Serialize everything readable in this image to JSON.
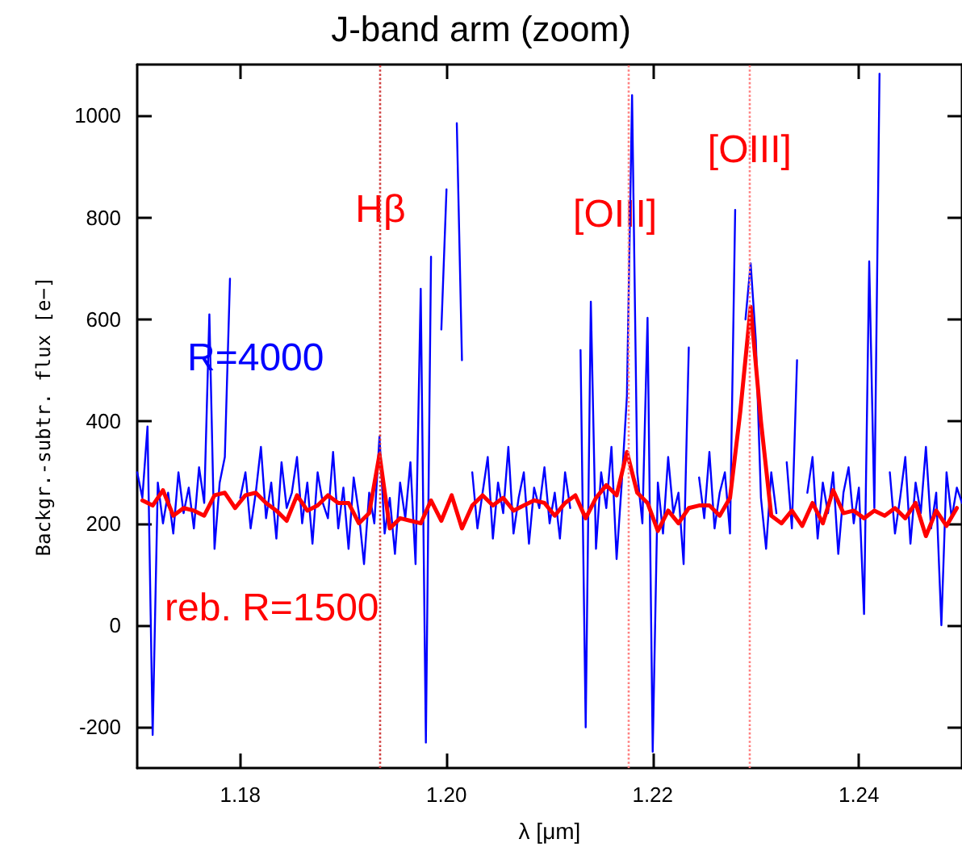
{
  "chart_data": {
    "type": "line",
    "title": "J-band arm (zoom)",
    "xlabel": "λ [μm]",
    "ylabel": "Backgr.-subtr. flux [e−]",
    "xlim": [
      1.17,
      1.25
    ],
    "xticks": [
      {
        "value": 1.18,
        "label": "1.18"
      },
      {
        "value": 1.2,
        "label": "1.20"
      },
      {
        "value": 1.22,
        "label": "1.22"
      },
      {
        "value": 1.24,
        "label": "1.24"
      }
    ],
    "ylim": [
      -280,
      1100
    ],
    "yticks": [
      -200,
      0,
      200,
      400,
      600,
      800,
      1000
    ],
    "legend": false,
    "marker": "none",
    "line_style": "solid",
    "series": [
      {
        "name": "R=4000",
        "color": "#0000ff",
        "x": [
          1.17,
          1.1705,
          1.171,
          1.1715,
          1.172,
          1.1725,
          1.173,
          1.1735,
          1.174,
          1.1745,
          1.175,
          1.1755,
          1.176,
          1.1765,
          1.177,
          1.1775,
          1.178,
          1.1785,
          1.179,
          1.1795,
          1.18,
          1.1805,
          1.181,
          1.1815,
          1.182,
          1.1825,
          1.183,
          1.1835,
          1.184,
          1.1845,
          1.185,
          1.1855,
          1.186,
          1.1865,
          1.187,
          1.1875,
          1.188,
          1.1885,
          1.189,
          1.1895,
          1.19,
          1.1905,
          1.191,
          1.1915,
          1.192,
          1.1925,
          1.193,
          1.1935,
          1.194,
          1.1945,
          1.195,
          1.1955,
          1.196,
          1.1965,
          1.197,
          1.1975,
          1.198,
          1.1985,
          1.199,
          1.1995,
          1.2,
          1.2005,
          1.201,
          1.2015,
          1.202,
          1.2025,
          1.203,
          1.2035,
          1.204,
          1.2045,
          1.205,
          1.2055,
          1.206,
          1.2065,
          1.207,
          1.2075,
          1.208,
          1.2085,
          1.209,
          1.2095,
          1.21,
          1.2105,
          1.211,
          1.2115,
          1.212,
          1.2125,
          1.213,
          1.2135,
          1.214,
          1.2145,
          1.215,
          1.2155,
          1.216,
          1.2165,
          1.217,
          1.2175,
          1.218,
          1.2185,
          1.219,
          1.2195,
          1.22,
          1.2205,
          1.221,
          1.2215,
          1.222,
          1.2225,
          1.223,
          1.2235,
          1.224,
          1.2245,
          1.225,
          1.2255,
          1.226,
          1.2265,
          1.227,
          1.2275,
          1.228,
          1.2285,
          1.229,
          1.2295,
          1.23,
          1.2305,
          1.231,
          1.2315,
          1.232,
          1.2325,
          1.233,
          1.2335,
          1.234,
          1.2345,
          1.235,
          1.2355,
          1.236,
          1.2365,
          1.237,
          1.2375,
          1.238,
          1.2385,
          1.239,
          1.2395,
          1.24,
          1.2405,
          1.241,
          1.2415,
          1.242,
          1.2425,
          1.243,
          1.2435,
          1.244,
          1.2445,
          1.245,
          1.2455,
          1.246,
          1.2465,
          1.247,
          1.2475,
          1.248,
          1.2485,
          1.249,
          1.2495,
          1.25
        ],
        "values": [
          300,
          250,
          390,
          -215,
          280,
          200,
          260,
          180,
          300,
          220,
          270,
          190,
          310,
          240,
          610,
          150,
          280,
          330,
          680,
          null,
          250,
          300,
          190,
          260,
          350,
          210,
          280,
          170,
          320,
          230,
          260,
          330,
          200,
          280,
          160,
          300,
          240,
          210,
          340,
          190,
          270,
          150,
          290,
          220,
          120,
          260,
          200,
          370,
          180,
          250,
          140,
          280,
          210,
          320,
          120,
          660,
          -230,
          723,
          null,
          580,
          855,
          null,
          985,
          520,
          null,
          300,
          190,
          260,
          330,
          170,
          280,
          220,
          350,
          180,
          250,
          300,
          160,
          270,
          230,
          310,
          200,
          260,
          170,
          300,
          230,
          null,
          540,
          -200,
          635,
          150,
          300,
          230,
          350,
          130,
          280,
          450,
          1040,
          300,
          200,
          603,
          -248,
          280,
          180,
          330,
          220,
          260,
          120,
          545,
          null,
          290,
          210,
          340,
          190,
          260,
          300,
          180,
          815,
          null,
          600,
          710,
          560,
          250,
          150,
          300,
          220,
          null,
          320,
          190,
          520,
          null,
          260,
          330,
          170,
          280,
          220,
          300,
          140,
          260,
          310,
          200,
          270,
          22,
          714,
          230,
          1082,
          null,
          300,
          180,
          250,
          330,
          160,
          280,
          220,
          350,
          190,
          260,
          0,
          300,
          210,
          270,
          240
        ]
      },
      {
        "name": "reb. R=1500",
        "color": "#ff0000",
        "x": [
          1.1705,
          1.1715,
          1.1725,
          1.1735,
          1.1745,
          1.1755,
          1.1765,
          1.1775,
          1.1785,
          1.1795,
          1.1805,
          1.1815,
          1.1825,
          1.1835,
          1.1845,
          1.1855,
          1.1865,
          1.1875,
          1.1885,
          1.1895,
          1.1905,
          1.1915,
          1.1925,
          1.1935,
          1.1945,
          1.1955,
          1.1965,
          1.1975,
          1.1985,
          1.1995,
          1.2005,
          1.2015,
          1.2025,
          1.2035,
          1.2045,
          1.2055,
          1.2065,
          1.2075,
          1.2085,
          1.2095,
          1.2105,
          1.2115,
          1.2125,
          1.2135,
          1.2145,
          1.2155,
          1.2165,
          1.2175,
          1.2185,
          1.2195,
          1.2205,
          1.2215,
          1.2225,
          1.2235,
          1.2245,
          1.2255,
          1.2265,
          1.2275,
          1.2285,
          1.2295,
          1.2305,
          1.2315,
          1.2325,
          1.2335,
          1.2345,
          1.2355,
          1.2365,
          1.2375,
          1.2385,
          1.2395,
          1.2405,
          1.2415,
          1.2425,
          1.2435,
          1.2445,
          1.2455,
          1.2465,
          1.2475,
          1.2485,
          1.2495
        ],
        "values": [
          245,
          235,
          265,
          215,
          230,
          225,
          215,
          255,
          260,
          230,
          255,
          260,
          240,
          225,
          205,
          255,
          225,
          235,
          255,
          240,
          240,
          200,
          220,
          335,
          190,
          210,
          205,
          200,
          245,
          205,
          255,
          190,
          235,
          255,
          235,
          250,
          225,
          235,
          245,
          240,
          215,
          240,
          255,
          210,
          250,
          275,
          255,
          340,
          260,
          240,
          185,
          225,
          200,
          230,
          235,
          235,
          215,
          250,
          420,
          625,
          400,
          215,
          200,
          225,
          195,
          240,
          200,
          265,
          220,
          225,
          210,
          225,
          215,
          230,
          210,
          240,
          175,
          225,
          195,
          230
        ]
      }
    ],
    "ref_lines": [
      {
        "axis": "x",
        "value": 1.1936,
        "label": "Hβ",
        "color": "#d04040",
        "line_style": "dotted"
      },
      {
        "axis": "x",
        "value": 1.2176,
        "label": "[OIII]",
        "color": "#ff8080",
        "line_style": "dotted"
      },
      {
        "axis": "x",
        "value": 1.2294,
        "label": "[OIII]",
        "color": "#ff8080",
        "line_style": "dotted"
      }
    ]
  }
}
